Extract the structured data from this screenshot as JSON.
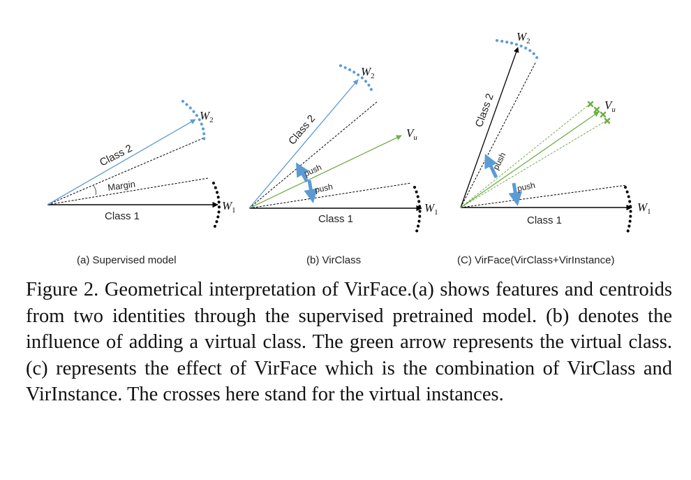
{
  "panels": [
    {
      "subcaption": "(a) Supervised model",
      "class1": "Class 1",
      "class2": "Class 2",
      "margin": "Margin",
      "w1": "W",
      "w1_sub": "1",
      "w2": "W",
      "w2_sub": "2"
    },
    {
      "subcaption": "(b) VirClass",
      "class1": "Class 1",
      "class2": "Class 2",
      "push": "push",
      "w1": "W",
      "w1_sub": "1",
      "w2": "W",
      "w2_sub": "2",
      "vu": "V",
      "vu_sub": "u"
    },
    {
      "subcaption": "(C) VirFace(VirClass+VirInstance)",
      "class1": "Class 1",
      "class2": "Class 2",
      "push": "push",
      "w1": "W",
      "w1_sub": "1",
      "w2": "W",
      "w2_sub": "2",
      "vu": "V",
      "vu_sub": "u"
    }
  ],
  "colors": {
    "blue": "#5b9bd5",
    "green": "#70ad47",
    "black": "#000000"
  },
  "caption": "Figure 2. Geometrical interpretation of VirFace.(a) shows features and centroids from two identities through the supervised pretrained model. (b) denotes the influence of adding a virtual class. The green arrow represents the virtual class. (c) represents the effect of VirFace which is the combination of VirClass and VirInstance. The crosses here stand for the virtual instances."
}
